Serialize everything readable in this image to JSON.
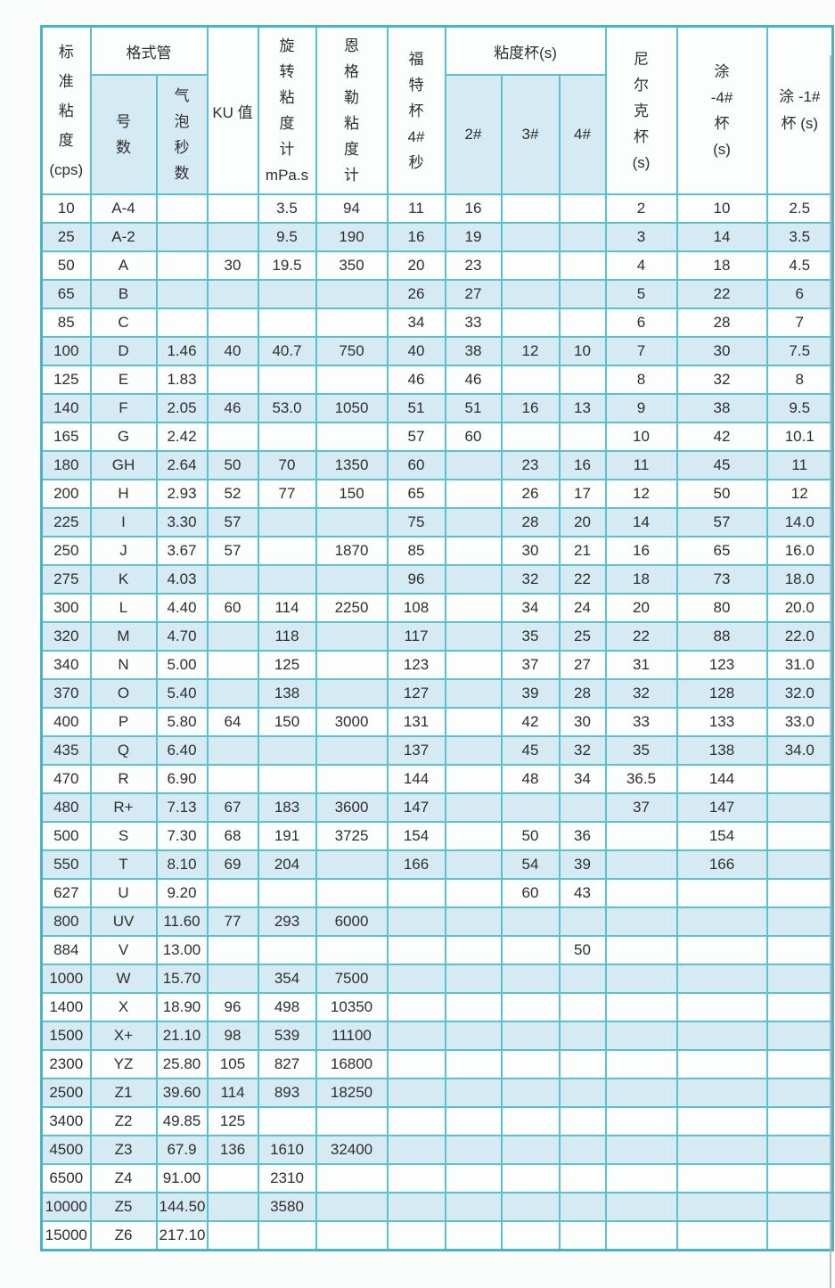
{
  "table": {
    "header": {
      "standard_viscosity_lines": [
        "标",
        "准",
        "粘",
        "度",
        "(cps)"
      ],
      "gardner_tube_group": "格式管",
      "tube_number_lines": [
        "号",
        "数"
      ],
      "bubble_seconds_lines": [
        "气",
        "泡",
        "秒",
        "数"
      ],
      "ku_value": "KU 值",
      "rotational_lines": [
        "旋",
        "转",
        "粘",
        "度",
        "计",
        "mPa.s"
      ],
      "engler_lines": [
        "恩",
        "格",
        "勒",
        "粘",
        "度",
        "计"
      ],
      "ford_cup_lines": [
        "福",
        "特",
        "杯",
        "4#",
        "秒"
      ],
      "viscosity_cup_group": "粘度杯(s)",
      "cup2": "2#",
      "cup3": "3#",
      "cup4": "4#",
      "nielke_lines": [
        "尼",
        "尔",
        "克",
        "杯",
        "(s)"
      ],
      "tu4_lines": [
        "涂",
        "-4#",
        "杯",
        "(s)"
      ],
      "tu1_lines": [
        "涂 -1#",
        "杯 (s)"
      ]
    },
    "column_keys": [
      "std-cps",
      "tube-number",
      "bubble-seconds",
      "ku-value",
      "rotational-mpas",
      "engler",
      "ford-cup-4",
      "cup-2",
      "cup-3",
      "cup-4",
      "nielke-cup",
      "tu-4-cup",
      "tu-1-cup"
    ],
    "rows": [
      [
        "10",
        "A-4",
        "",
        "",
        "3.5",
        "94",
        "11",
        "16",
        "",
        "",
        "2",
        "10",
        "2.5"
      ],
      [
        "25",
        "A-2",
        "",
        "",
        "9.5",
        "190",
        "16",
        "19",
        "",
        "",
        "3",
        "14",
        "3.5"
      ],
      [
        "50",
        "A",
        "",
        "30",
        "19.5",
        "350",
        "20",
        "23",
        "",
        "",
        "4",
        "18",
        "4.5"
      ],
      [
        "65",
        "B",
        "",
        "",
        "",
        "",
        "26",
        "27",
        "",
        "",
        "5",
        "22",
        "6"
      ],
      [
        "85",
        "C",
        "",
        "",
        "",
        "",
        "34",
        "33",
        "",
        "",
        "6",
        "28",
        "7"
      ],
      [
        "100",
        "D",
        "1.46",
        "40",
        "40.7",
        "750",
        "40",
        "38",
        "12",
        "10",
        "7",
        "30",
        "7.5"
      ],
      [
        "125",
        "E",
        "1.83",
        "",
        "",
        "",
        "46",
        "46",
        "",
        "",
        "8",
        "32",
        "8"
      ],
      [
        "140",
        "F",
        "2.05",
        "46",
        "53.0",
        "1050",
        "51",
        "51",
        "16",
        "13",
        "9",
        "38",
        "9.5"
      ],
      [
        "165",
        "G",
        "2.42",
        "",
        "",
        "",
        "57",
        "60",
        "",
        "",
        "10",
        "42",
        "10.1"
      ],
      [
        "180",
        "GH",
        "2.64",
        "50",
        "70",
        "1350",
        "60",
        "",
        "23",
        "16",
        "11",
        "45",
        "11"
      ],
      [
        "200",
        "H",
        "2.93",
        "52",
        "77",
        "150",
        "65",
        "",
        "26",
        "17",
        "12",
        "50",
        "12"
      ],
      [
        "225",
        "I",
        "3.30",
        "57",
        "",
        "",
        "75",
        "",
        "28",
        "20",
        "14",
        "57",
        "14.0"
      ],
      [
        "250",
        "J",
        "3.67",
        "57",
        "",
        "1870",
        "85",
        "",
        "30",
        "21",
        "16",
        "65",
        "16.0"
      ],
      [
        "275",
        "K",
        "4.03",
        "",
        "",
        "",
        "96",
        "",
        "32",
        "22",
        "18",
        "73",
        "18.0"
      ],
      [
        "300",
        "L",
        "4.40",
        "60",
        "114",
        "2250",
        "108",
        "",
        "34",
        "24",
        "20",
        "80",
        "20.0"
      ],
      [
        "320",
        "M",
        "4.70",
        "",
        "118",
        "",
        "117",
        "",
        "35",
        "25",
        "22",
        "88",
        "22.0"
      ],
      [
        "340",
        "N",
        "5.00",
        "",
        "125",
        "",
        "123",
        "",
        "37",
        "27",
        "31",
        "123",
        "31.0"
      ],
      [
        "370",
        "O",
        "5.40",
        "",
        "138",
        "",
        "127",
        "",
        "39",
        "28",
        "32",
        "128",
        "32.0"
      ],
      [
        "400",
        "P",
        "5.80",
        "64",
        "150",
        "3000",
        "131",
        "",
        "42",
        "30",
        "33",
        "133",
        "33.0"
      ],
      [
        "435",
        "Q",
        "6.40",
        "",
        "",
        "",
        "137",
        "",
        "45",
        "32",
        "35",
        "138",
        "34.0"
      ],
      [
        "470",
        "R",
        "6.90",
        "",
        "",
        "",
        "144",
        "",
        "48",
        "34",
        "36.5",
        "144",
        ""
      ],
      [
        "480",
        "R+",
        "7.13",
        "67",
        "183",
        "3600",
        "147",
        "",
        "",
        "",
        "37",
        "147",
        ""
      ],
      [
        "500",
        "S",
        "7.30",
        "68",
        "191",
        "3725",
        "154",
        "",
        "50",
        "36",
        "",
        "154",
        ""
      ],
      [
        "550",
        "T",
        "8.10",
        "69",
        "204",
        "",
        "166",
        "",
        "54",
        "39",
        "",
        "166",
        ""
      ],
      [
        "627",
        "U",
        "9.20",
        "",
        "",
        "",
        "",
        "",
        "60",
        "43",
        "",
        "",
        ""
      ],
      [
        "800",
        "UV",
        "11.60",
        "77",
        "293",
        "6000",
        "",
        "",
        "",
        "",
        "",
        "",
        ""
      ],
      [
        "884",
        "V",
        "13.00",
        "",
        "",
        "",
        "",
        "",
        "",
        "50",
        "",
        "",
        ""
      ],
      [
        "1000",
        "W",
        "15.70",
        "",
        "354",
        "7500",
        "",
        "",
        "",
        "",
        "",
        "",
        ""
      ],
      [
        "1400",
        "X",
        "18.90",
        "96",
        "498",
        "10350",
        "",
        "",
        "",
        "",
        "",
        "",
        ""
      ],
      [
        "1500",
        "X+",
        "21.10",
        "98",
        "539",
        "11100",
        "",
        "",
        "",
        "",
        "",
        "",
        ""
      ],
      [
        "2300",
        "YZ",
        "25.80",
        "105",
        "827",
        "16800",
        "",
        "",
        "",
        "",
        "",
        "",
        ""
      ],
      [
        "2500",
        "Z1",
        "39.60",
        "114",
        "893",
        "18250",
        "",
        "",
        "",
        "",
        "",
        "",
        ""
      ],
      [
        "3400",
        "Z2",
        "49.85",
        "125",
        "",
        "",
        "",
        "",
        "",
        "",
        "",
        "",
        ""
      ],
      [
        "4500",
        "Z3",
        "67.9",
        "136",
        "1610",
        "32400",
        "",
        "",
        "",
        "",
        "",
        "",
        ""
      ],
      [
        "6500",
        "Z4",
        "91.00",
        "",
        "2310",
        "",
        "",
        "",
        "",
        "",
        "",
        "",
        ""
      ],
      [
        "10000",
        "Z5",
        "144.50",
        "",
        "3580",
        "",
        "",
        "",
        "",
        "",
        "",
        "",
        ""
      ],
      [
        "15000",
        "Z6",
        "217.10",
        "",
        "",
        "",
        "",
        "",
        "",
        "",
        "",
        "",
        ""
      ]
    ]
  },
  "colors": {
    "border_teal": "#5ac1d1",
    "outer_border": "#46b5c7",
    "stripe_blue": "#d6eaf3",
    "cell_white": "#fcfdfd",
    "text": "#2e2e2e"
  }
}
